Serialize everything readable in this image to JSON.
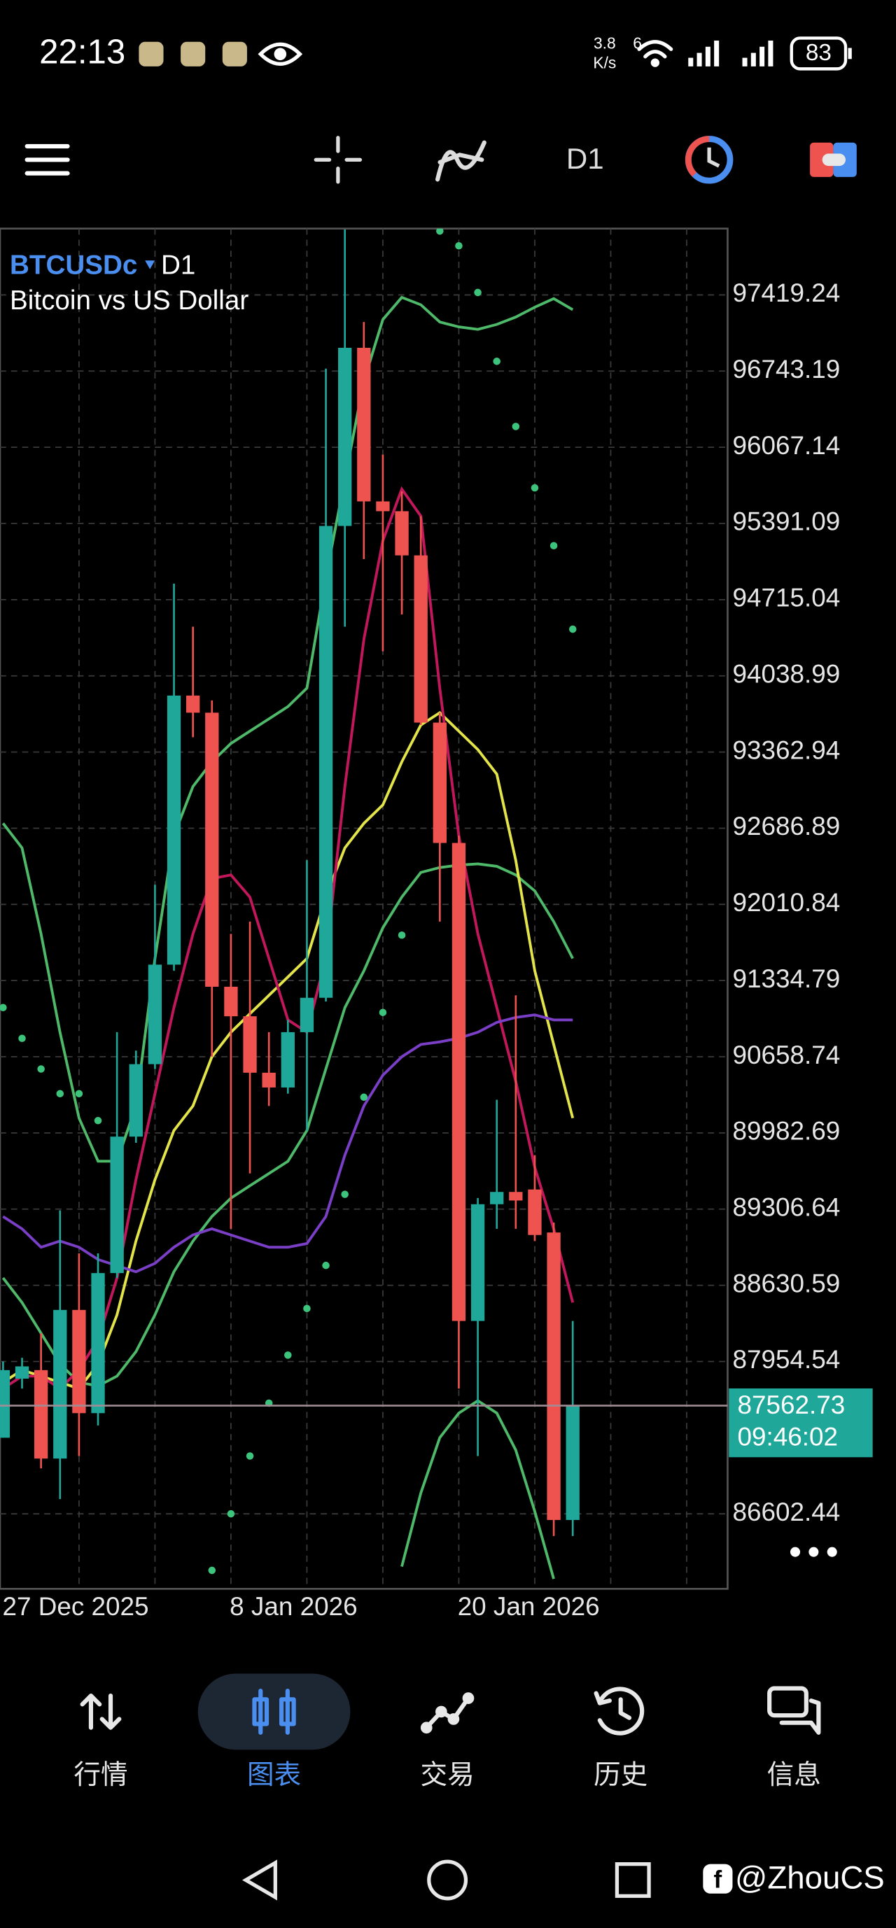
{
  "status_bar": {
    "time": "22:13",
    "net_speed": "3.8",
    "net_unit": "K/s",
    "network": "6",
    "battery": "83"
  },
  "toolbar": {
    "timeframe": "D1"
  },
  "chart_data": {
    "type": "candlestick",
    "symbol": "BTCUSDc",
    "timeframe": "D1",
    "description": "Bitcoin vs US Dollar",
    "categories": [
      "27 Dec 2025",
      null,
      null,
      null,
      null,
      null,
      null,
      null,
      null,
      null,
      null,
      null,
      "8 Jan 2026",
      null,
      null,
      null,
      null,
      null,
      null,
      null,
      null,
      null,
      null,
      null,
      "20 Jan 2026",
      null,
      null,
      null,
      null,
      null,
      null
    ],
    "open": [
      87278,
      87802,
      87878,
      87093,
      88412,
      87496,
      88739,
      89950,
      90593,
      91476,
      93864,
      93712,
      91280,
      91018,
      90517,
      90386,
      90877,
      91182,
      95369,
      96950,
      95587,
      95500,
      95108,
      93624,
      92556,
      88314,
      89350,
      89459,
      89481,
      89099,
      86548
    ],
    "high": [
      87954,
      87987,
      88205,
      89296,
      88914,
      88914,
      90877,
      90713,
      92185,
      94857,
      94475,
      93821,
      91749,
      91858,
      90877,
      90986,
      92403,
      96765,
      98000,
      97179,
      96002,
      95675,
      95456,
      93712,
      92621,
      89405,
      90277,
      91204,
      89786,
      89187,
      88314
    ],
    "low": [
      87278,
      87714,
      87006,
      86733,
      87115,
      87387,
      88696,
      89895,
      90550,
      91422,
      93494,
      90659,
      89132,
      89623,
      90222,
      90331,
      90004,
      91149,
      94475,
      95075,
      94257,
      94584,
      93603,
      91858,
      87714,
      87115,
      89132,
      89132,
      89023,
      86406,
      86406
    ],
    "close": [
      87878,
      87911,
      87093,
      88412,
      87496,
      88739,
      89950,
      90593,
      91476,
      93864,
      93712,
      91280,
      91018,
      90517,
      90386,
      90877,
      91182,
      95369,
      96950,
      95587,
      95500,
      95108,
      93624,
      92556,
      88314,
      89350,
      89459,
      89383,
      89077,
      86548,
      87562.73
    ],
    "up_color": "#1fa89a",
    "down_color": "#ef5350",
    "series": [
      {
        "color": "#4fb96a",
        "values": [
          92730,
          92512,
          91749,
          90877,
          90114,
          89732,
          89732,
          90222,
          91531,
          92621,
          93057,
          93276,
          93439,
          93548,
          93657,
          93766,
          93930,
          94911,
          95783,
          96656,
          97201,
          97397,
          97332,
          97179,
          97136,
          97114,
          97157,
          97223,
          97310,
          97386,
          97288
        ]
      },
      {
        "color": "#4fb96a",
        "values": [
          88696,
          88478,
          88205,
          87933,
          87769,
          87737,
          87824,
          88042,
          88369,
          88750,
          89023,
          89241,
          89405,
          89514,
          89623,
          89732,
          90004,
          90550,
          91095,
          91422,
          91804,
          92076,
          92294,
          92338,
          92360,
          92371,
          92349,
          92272,
          92131,
          91858,
          91531
        ]
      },
      {
        "color": "#4fb96a",
        "values": [
          null,
          null,
          null,
          null,
          null,
          null,
          null,
          null,
          null,
          null,
          null,
          null,
          null,
          null,
          null,
          null,
          null,
          null,
          null,
          null,
          null,
          86134,
          86788,
          87278,
          87496,
          87606,
          87496,
          87169,
          86624,
          86025,
          null
        ]
      },
      {
        "color": "#e3e34a",
        "values": [
          87769,
          87878,
          87824,
          87769,
          87714,
          87933,
          88369,
          89023,
          89568,
          90004,
          90222,
          90659,
          90877,
          91040,
          91204,
          91367,
          91531,
          92076,
          92512,
          92730,
          92894,
          93276,
          93603,
          93712,
          93548,
          93385,
          93167,
          92403,
          91422,
          90768,
          90114
        ]
      },
      {
        "color": "#c2185b",
        "values": [
          87714,
          87824,
          87824,
          87714,
          87878,
          88151,
          88696,
          89568,
          90331,
          91095,
          91749,
          92240,
          92272,
          92076,
          91531,
          90986,
          90877,
          91531,
          93057,
          94366,
          95238,
          95696,
          95456,
          93930,
          92621,
          91749,
          91095,
          90441,
          89677,
          89132,
          88478
        ]
      },
      {
        "color": "#7a3fc6",
        "values": [
          89241,
          89132,
          88968,
          89023,
          88968,
          88859,
          88805,
          88750,
          88826,
          88968,
          89077,
          89132,
          89077,
          89023,
          88968,
          88968,
          89001,
          89241,
          89786,
          90222,
          90495,
          90659,
          90768,
          90790,
          90823,
          90877,
          90964,
          91008,
          91030,
          90986,
          90986
        ]
      },
      {
        "color": "#3cc47c",
        "marker": "dot",
        "values": [
          91095,
          90822,
          90550,
          90331,
          90331,
          90092,
          null,
          null,
          null,
          null,
          null,
          86101,
          86603,
          87116,
          87585,
          88011,
          88425,
          88807,
          89438,
          90300,
          91052,
          91738,
          null,
          97986,
          97855,
          97441,
          96830,
          96252,
          95707,
          95194,
          94453
        ]
      }
    ],
    "ylim": [
      85937,
      98008
    ],
    "yticks": [
      97419.24,
      96743.19,
      96067.14,
      95391.09,
      94715.04,
      94038.99,
      93362.94,
      92686.89,
      92010.84,
      91334.79,
      90658.74,
      89982.69,
      89306.64,
      88630.59,
      87954.54,
      86602.44
    ],
    "grid": true,
    "current_price": 87562.73,
    "countdown": "09:46:02"
  },
  "tab_bar": {
    "tabs": [
      "行情",
      "图表",
      "交易",
      "历史",
      "信息"
    ],
    "active": 1
  },
  "watermark": "@ZhouCS"
}
